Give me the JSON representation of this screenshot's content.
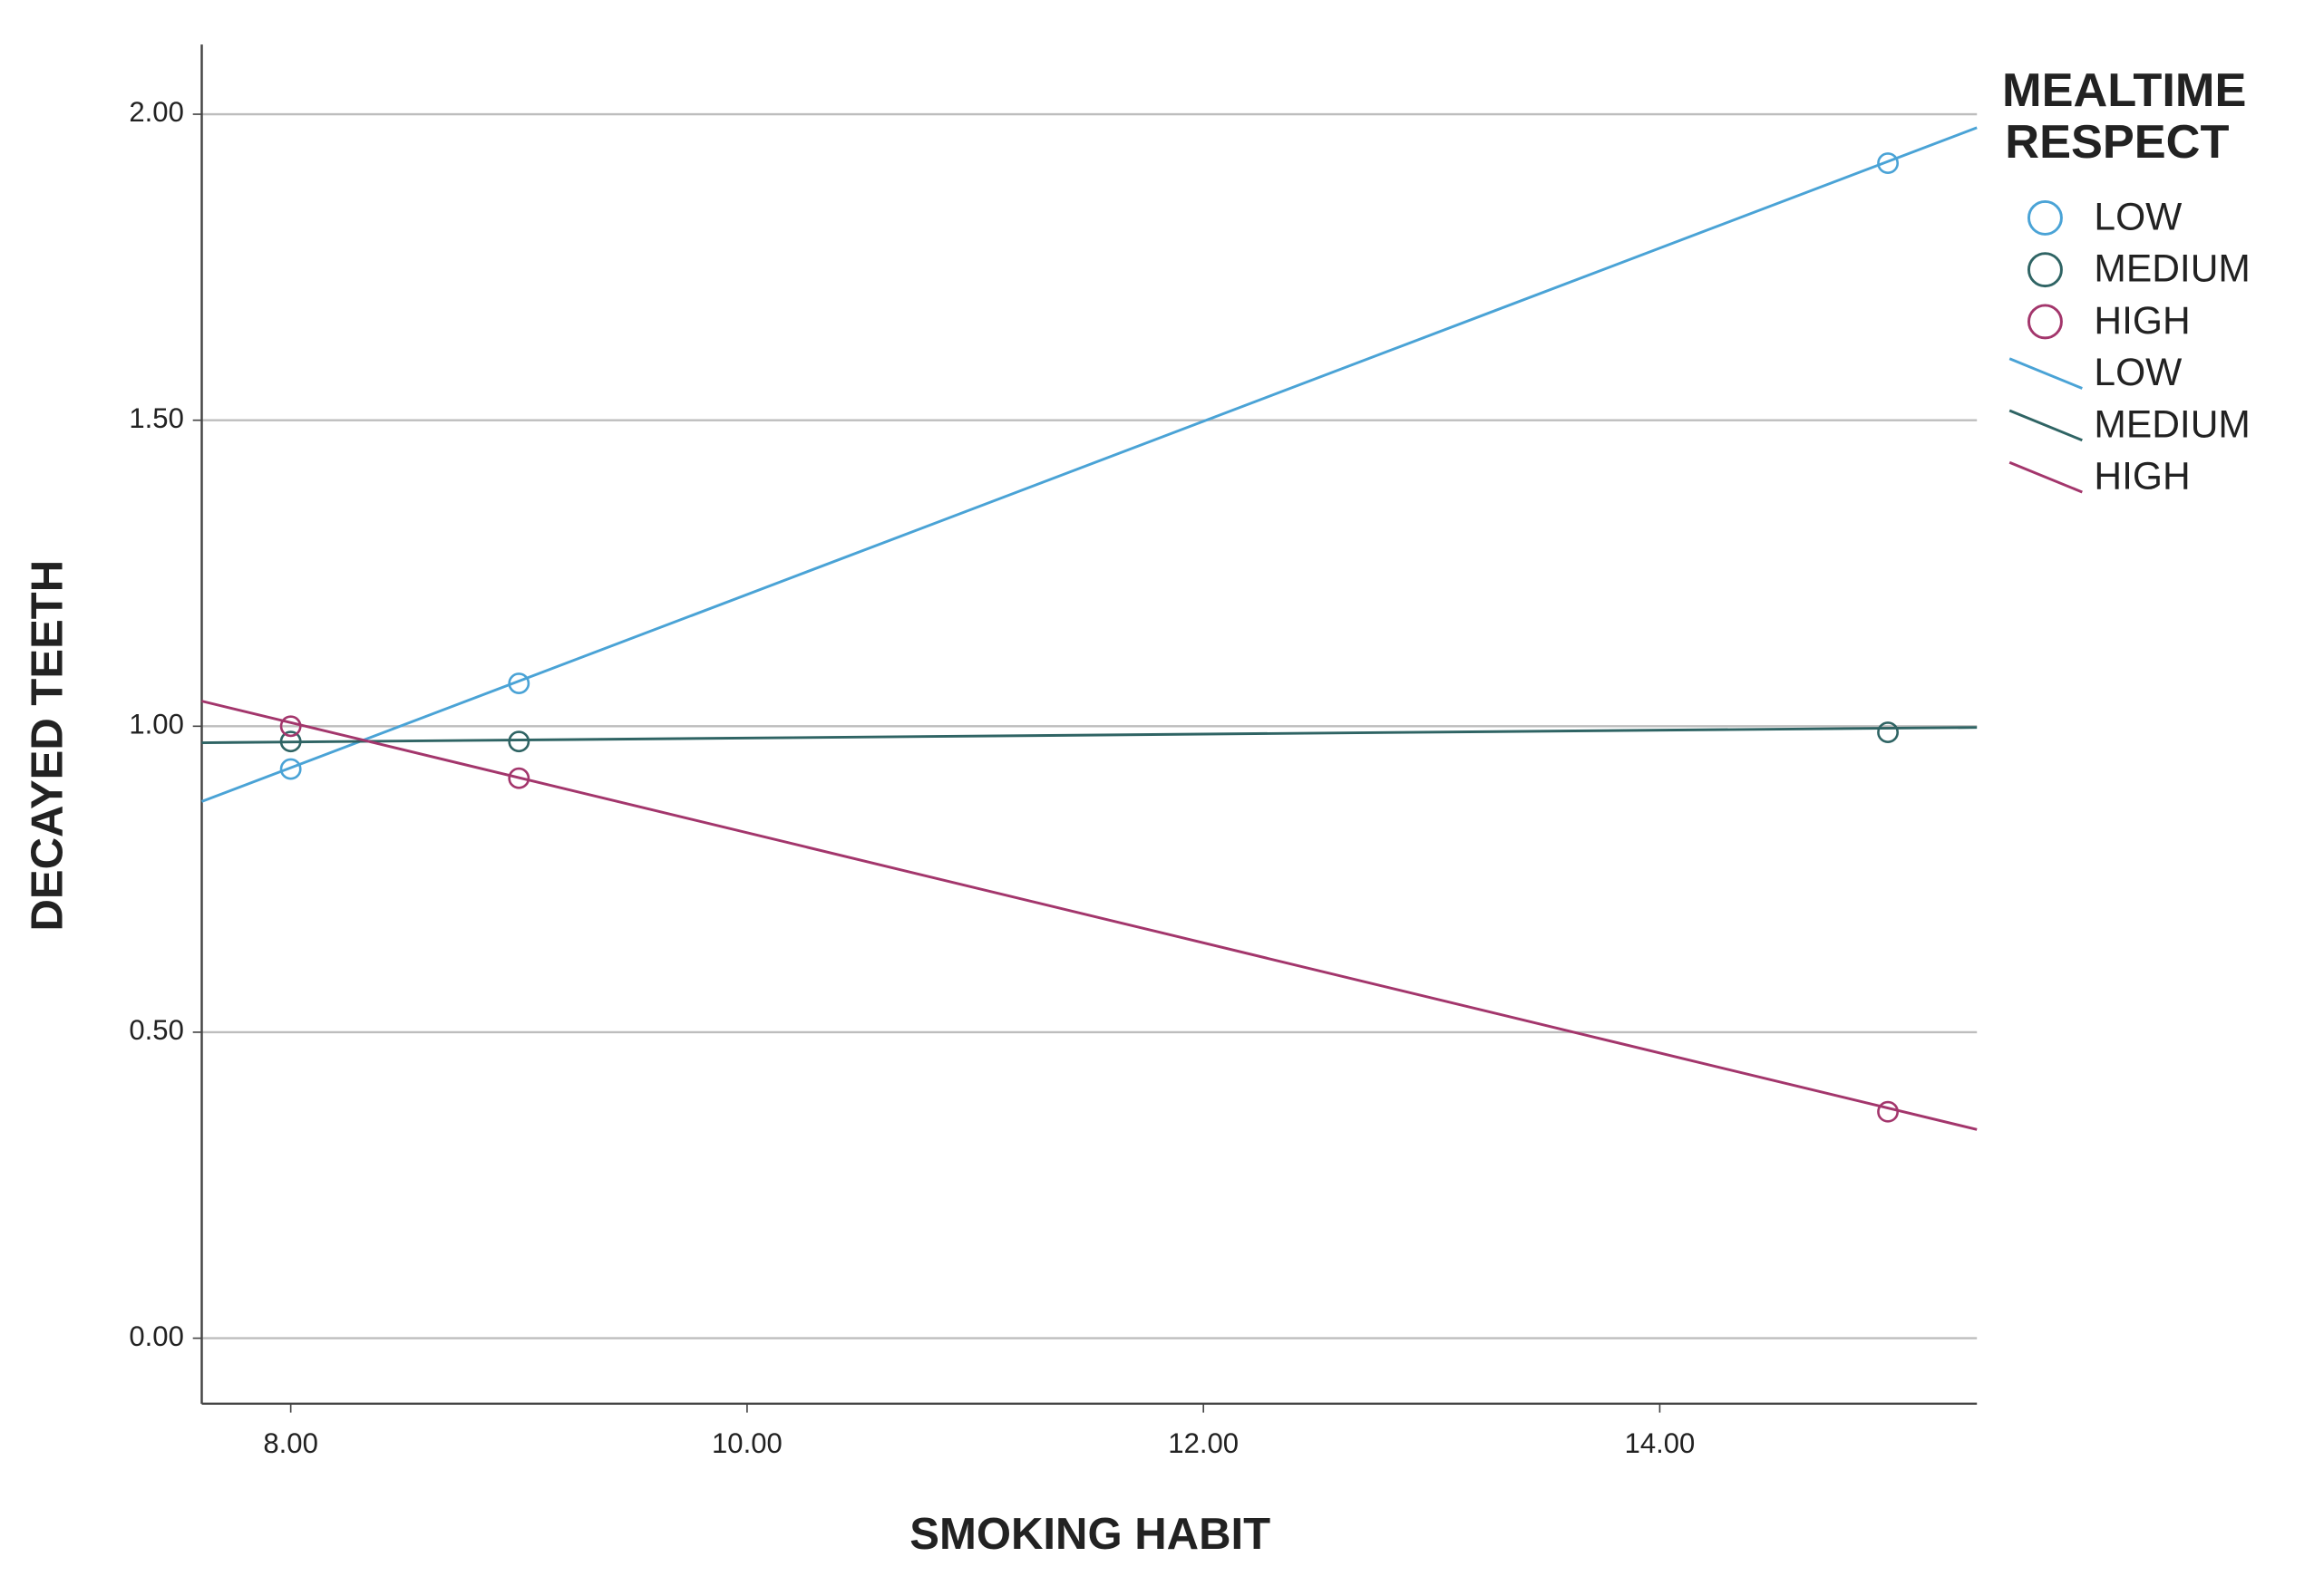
{
  "chart_data": {
    "type": "scatter",
    "x_label": "SMOKING HABIT",
    "y_label": "DECAYED TEETH",
    "legend_title": [
      "MEALTIME",
      "RESPECT"
    ],
    "xlim": [
      7.61,
      15.39
    ],
    "ylim": [
      -0.107,
      2.114
    ],
    "xticks": [
      {
        "value": 8,
        "label": "8.00"
      },
      {
        "value": 10,
        "label": "10.00"
      },
      {
        "value": 12,
        "label": "12.00"
      },
      {
        "value": 14,
        "label": "14.00"
      }
    ],
    "yticks": [
      {
        "value": 0,
        "label": "0.00"
      },
      {
        "value": 0.5,
        "label": "0.50"
      },
      {
        "value": 1,
        "label": "1.00"
      },
      {
        "value": 1.5,
        "label": "1.50"
      },
      {
        "value": 2,
        "label": "2.00"
      }
    ],
    "grid": true,
    "legend": "right",
    "series": [
      {
        "name": "LOW",
        "color": "#4aa3d6",
        "mark": "circle",
        "x": [
          8,
          9,
          15
        ],
        "values": [
          0.93,
          1.07,
          1.92
        ]
      },
      {
        "name": "MEDIUM",
        "color": "#2f6464",
        "mark": "circle",
        "x": [
          8,
          9,
          15
        ],
        "values": [
          0.975,
          0.975,
          0.99
        ]
      },
      {
        "name": "HIGH",
        "color": "#a3366c",
        "mark": "circle",
        "x": [
          8,
          9,
          15
        ],
        "values": [
          1.0,
          0.915,
          0.37
        ]
      },
      {
        "name": "LOW",
        "color": "#4aa3d6",
        "mark": "line",
        "x": [
          7.61,
          15.39
        ],
        "values": [
          0.877,
          1.978
        ]
      },
      {
        "name": "MEDIUM",
        "color": "#2f6464",
        "mark": "line",
        "x": [
          7.61,
          15.39
        ],
        "values": [
          0.973,
          0.998
        ]
      },
      {
        "name": "HIGH",
        "color": "#a3366c",
        "mark": "line",
        "x": [
          7.61,
          15.39
        ],
        "values": [
          1.041,
          0.341
        ]
      }
    ]
  }
}
